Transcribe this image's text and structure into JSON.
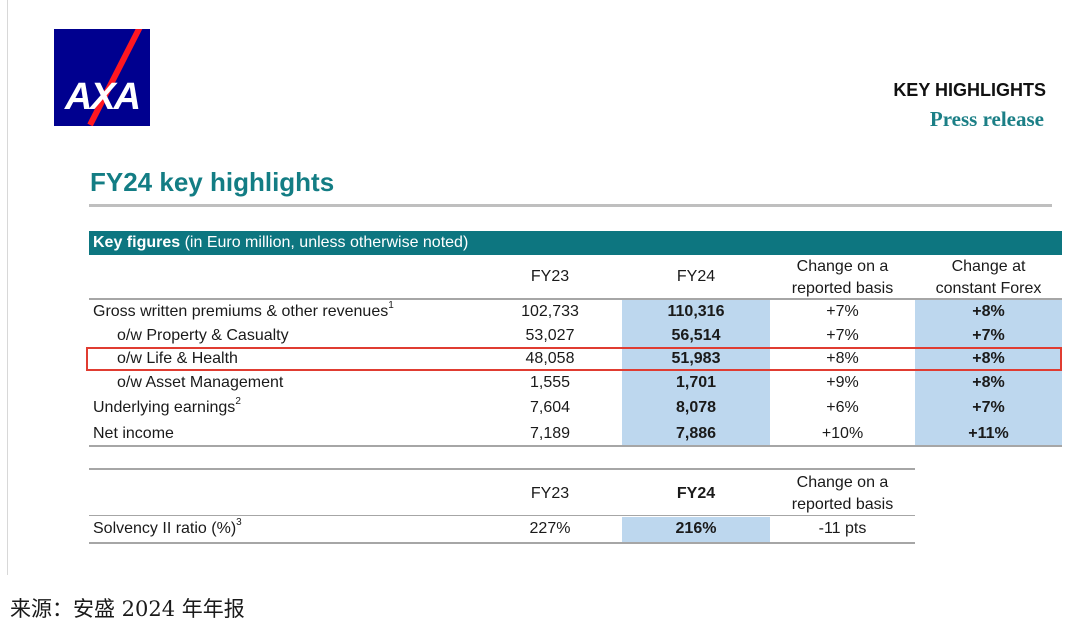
{
  "header": {
    "logo_text": "AXA",
    "key_highlights": "KEY HIGHLIGHTS",
    "press_release": "Press release",
    "brand_color": "#00008f",
    "accent_color": "#137d84"
  },
  "page_title": "FY24 key highlights",
  "key_figures": {
    "band_bold": "Key figures",
    "band_rest": " (in Euro million, unless otherwise noted)",
    "columns": {
      "fy23": "FY23",
      "fy24": "FY24",
      "change_reported_l1": "Change on a",
      "change_reported_l2": "reported basis",
      "change_forex_l1": "Change at",
      "change_forex_l2": "constant Forex"
    },
    "rows": [
      {
        "label": "Gross written premiums & other revenues",
        "sup": "1",
        "fy23": "102,733",
        "fy24": "110,316",
        "chg": "+7%",
        "fx": "+8%"
      },
      {
        "label": "o/w Property & Casualty",
        "sup": "",
        "fy23": "53,027",
        "fy24": "56,514",
        "chg": "+7%",
        "fx": "+7%"
      },
      {
        "label": "o/w Life & Health",
        "sup": "",
        "fy23": "48,058",
        "fy24": "51,983",
        "chg": "+8%",
        "fx": "+8%"
      },
      {
        "label": "o/w Asset Management",
        "sup": "",
        "fy23": "1,555",
        "fy24": "1,701",
        "chg": "+9%",
        "fx": "+8%"
      },
      {
        "label": "Underlying earnings",
        "sup": "2",
        "fy23": "7,604",
        "fy24": "8,078",
        "chg": "+6%",
        "fx": "+7%"
      },
      {
        "label": "Net income",
        "sup": "",
        "fy23": "7,189",
        "fy24": "7,886",
        "chg": "+10%",
        "fx": "+11%"
      }
    ]
  },
  "solvency": {
    "columns": {
      "fy23": "FY23",
      "fy24": "FY24",
      "change_l1": "Change on a",
      "change_l2": "reported basis"
    },
    "row": {
      "label": "Solvency II ratio (%)",
      "sup": "3",
      "fy23": "227%",
      "fy24": "216%",
      "chg": "-11 pts"
    }
  },
  "source_note": "来源：安盛 2024 年年报"
}
